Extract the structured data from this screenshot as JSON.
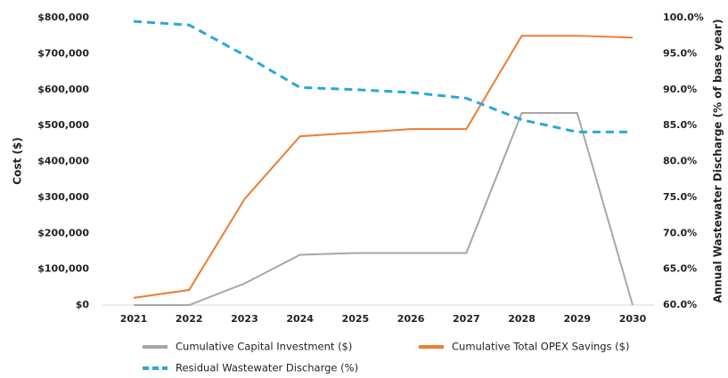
{
  "chart_data": {
    "type": "line",
    "categories": [
      "2021",
      "2022",
      "2023",
      "2024",
      "2025",
      "2026",
      "2027",
      "2028",
      "2029",
      "2030"
    ],
    "y_label": "Cost ($)",
    "y2_label": "Annual Wastewater Discharge (% of base year)",
    "ylim": [
      0,
      800000
    ],
    "yticks": [
      {
        "value": 0,
        "label": "$0"
      },
      {
        "value": 100000,
        "label": "$100,000"
      },
      {
        "value": 200000,
        "label": "$200,000"
      },
      {
        "value": 300000,
        "label": "$300,000"
      },
      {
        "value": 400000,
        "label": "$400,000"
      },
      {
        "value": 500000,
        "label": "$500,000"
      },
      {
        "value": 600000,
        "label": "$600,000"
      },
      {
        "value": 700000,
        "label": "$700,000"
      },
      {
        "value": 800000,
        "label": "$800,000"
      }
    ],
    "y2lim": [
      60,
      100
    ],
    "y2ticks": [
      {
        "value": 60,
        "label": "60.0%"
      },
      {
        "value": 65,
        "label": "65.0%"
      },
      {
        "value": 70,
        "label": "70.0%"
      },
      {
        "value": 75,
        "label": "75.0%"
      },
      {
        "value": 80,
        "label": "80.0%"
      },
      {
        "value": 85,
        "label": "85.0%"
      },
      {
        "value": 90,
        "label": "90.0%"
      },
      {
        "value": 95,
        "label": "95.0%"
      },
      {
        "value": 100,
        "label": "100.0%"
      }
    ],
    "series": [
      {
        "name": "Cumulative Capital Investment ($)",
        "color": "#a6a6a6",
        "values": [
          0,
          0,
          60000,
          140000,
          145000,
          145000,
          145000,
          535000,
          535000,
          0
        ]
      },
      {
        "name": "Cumulative Total OPEX Savings ($)",
        "color": "#ed7d31",
        "values": [
          20000,
          42000,
          295000,
          470000,
          480000,
          490000,
          490000,
          750000,
          750000,
          745000
        ]
      },
      {
        "name": "Residual Wastewater Discharge (%)",
        "color": "#29a8d8",
        "dashed": true,
        "axis": "y2",
        "values": [
          99.5,
          99.0,
          94.8,
          90.3,
          90.0,
          89.6,
          88.8,
          85.8,
          84.1,
          84.1
        ]
      }
    ]
  }
}
